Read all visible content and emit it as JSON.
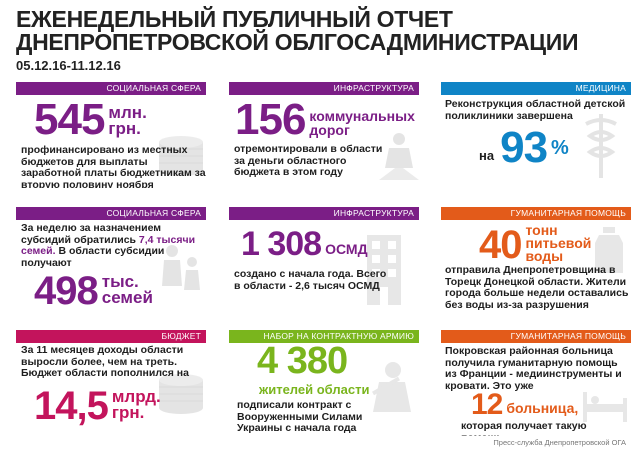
{
  "header": {
    "title_line1": "ЕЖЕНЕДЕЛЬНЫЙ ПУБЛИЧНЫЙ ОТЧЕТ",
    "title_line2": "ДНЕПРОПЕТРОВСКОЙ ОБЛГОСАДМИНИСТРАЦИИ",
    "dates": "05.12.16-11.12.16"
  },
  "colors": {
    "purple": "#7b1e86",
    "green": "#7ab51d",
    "blue": "#0f84c6",
    "orange": "#e35b1a",
    "pink": "#c3145c"
  },
  "cards": {
    "c1": {
      "category": "СОЦИАЛЬНАЯ СФЕРА",
      "number": "545",
      "unit1": "млн.",
      "unit2": "грн.",
      "text": "профинансировано из местных бюджетов для выплаты заработной платы бюджетникам за вторую половину ноября",
      "icon": "coins-icon"
    },
    "c2": {
      "category": "ИНФРАСТРУКТУРА",
      "number": "156",
      "unit1": "коммунальных",
      "unit2": "дорог",
      "text": "отремонтировали в области за деньги областного бюджета в этом году",
      "icon": "road-worker-icon"
    },
    "c3": {
      "category": "МЕДИЦИНА",
      "text": "Реконструкция областной детской поликлиники завершена",
      "prefix": "на",
      "number": "93",
      "unit": "%",
      "icon": "caduceus-icon"
    },
    "c4": {
      "category": "СОЦИАЛЬНАЯ СФЕРА",
      "text_a": "За неделю за назначением субсидий обратились",
      "highlight": "7,4 тысячи семей.",
      "text_b": "В области субсидии получают",
      "number": "498",
      "unit1": "тыс.",
      "unit2": "семей",
      "icon": "family-icon"
    },
    "c5": {
      "category": "ИНФРАСТРУКТУРА",
      "number": "1 308",
      "unit": "ОСМД",
      "text": "создано с начала года. Всего в области - 2,6 тысяч ОСМД",
      "icon": "building-icon"
    },
    "c6": {
      "category": "ГУМАНИТАРНАЯ ПОМОЩЬ",
      "number": "40",
      "unit1": "тонн",
      "unit2": "питьевой",
      "unit3": "воды",
      "text": "отправила Днепропетровщина в Торецк Донецкой области. Жители города больше недели оставались без воды из-за разрушения водовода",
      "icon": "water-bottle-icon"
    },
    "c7": {
      "category": "БЮДЖЕТ",
      "text": "За 11 месяцев доходы области выросли более, чем на треть. Бюджет области пополнился на",
      "number": "14,5",
      "unit1": "млрд.",
      "unit2": "грн.",
      "icon": "coins-icon"
    },
    "c8": {
      "category": "НАБОР НА КОНТРАКТНУЮ АРМИЮ",
      "number": "4 380",
      "unit": "жителей области",
      "text": "подписали контракт с Вооруженными Силами Украины с начала года",
      "icon": "soldier-icon"
    },
    "c9": {
      "category": "ГУМАНИТАРНАЯ ПОМОЩЬ",
      "text": "Покровская районная больница получила гуманитарную помощь из Франции - медиинструменты и кровати. Это уже",
      "number": "12",
      "unit": "больница,",
      "text_b": "которая получает такую помощь",
      "icon": "hospital-bed-icon"
    }
  },
  "footer": {
    "credit": "Пресс-служба Днепропетровской ОГА"
  }
}
